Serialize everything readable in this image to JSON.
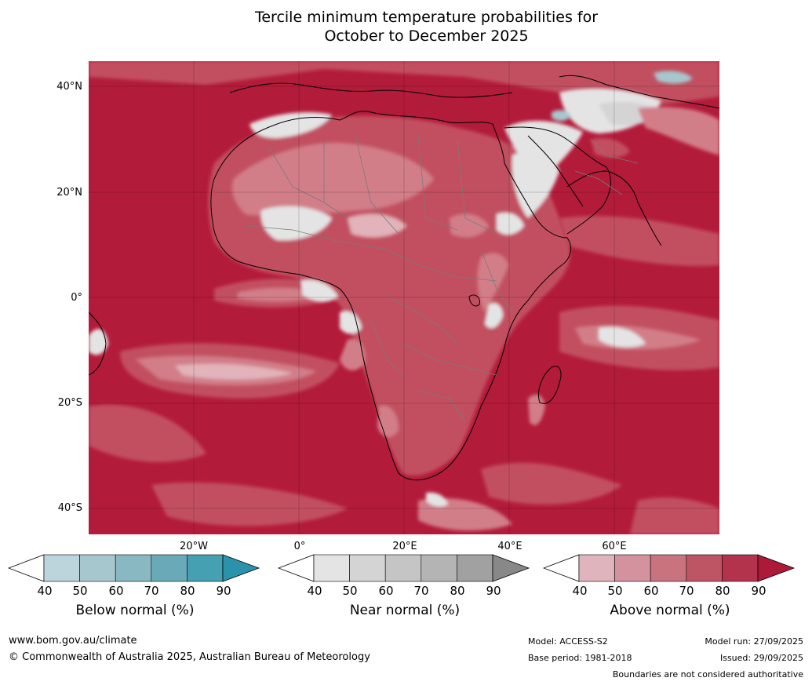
{
  "title": {
    "line1": "Tercile minimum temperature probabilities for",
    "line2": "October to December 2025"
  },
  "latitude_labels": [
    "40°N",
    "20°N",
    "0°",
    "20°S",
    "40°S"
  ],
  "longitude_labels": [
    "20°W",
    "0°",
    "20°E",
    "40°E",
    "60°E"
  ],
  "colorbars": [
    {
      "label": "Below normal (%)",
      "ticks": [
        "40",
        "50",
        "60",
        "70",
        "80",
        "90"
      ],
      "colors": [
        "#ffffff",
        "#bcd4db",
        "#a6c7cd",
        "#89b7c2",
        "#6aaab8",
        "#45a0b1",
        "#2a93ab"
      ]
    },
    {
      "label": "Near normal (%)",
      "ticks": [
        "40",
        "50",
        "60",
        "70",
        "80",
        "90"
      ],
      "colors": [
        "#ffffff",
        "#e4e4e4",
        "#d4d4d4",
        "#c5c5c5",
        "#b4b4b4",
        "#a1a1a1",
        "#888888"
      ]
    },
    {
      "label": "Above normal (%)",
      "ticks": [
        "40",
        "50",
        "60",
        "70",
        "80",
        "90"
      ],
      "colors": [
        "#ffffff",
        "#e0b4bd",
        "#d4929e",
        "#c9737f",
        "#be5565",
        "#b2334b",
        "#ac1a38"
      ]
    }
  ],
  "footer": {
    "website": "www.bom.gov.au/climate",
    "copyright": "© Commonwealth of Australia 2025, Australian Bureau of Meteorology",
    "model": "Model: ACCESS-S2",
    "base_period": "Base period: 1981-2018",
    "model_run": "Model run: 27/09/2025",
    "issued": "Issued: 29/09/2025",
    "disclaimer": "Boundaries are not considered authoritative"
  },
  "map_colors": {
    "ocean_main": "#b31b3a",
    "above_70": "#c24f60",
    "above_60": "#d27e89",
    "above_50": "#e2b3ba",
    "near_normal": "#e4e4e4",
    "below_normal": "#a6c7cd"
  }
}
